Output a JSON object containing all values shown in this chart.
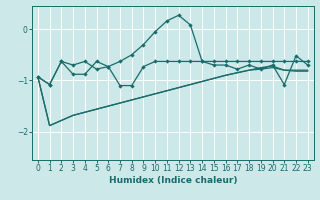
{
  "xlabel": "Humidex (Indice chaleur)",
  "bg_color": "#cce8e8",
  "line_color": "#1a6b6b",
  "grid_color": "#ffffff",
  "xlim": [
    -0.5,
    23.5
  ],
  "ylim": [
    -2.55,
    0.45
  ],
  "yticks": [
    0,
    -1,
    -2
  ],
  "xticks": [
    0,
    1,
    2,
    3,
    4,
    5,
    6,
    7,
    8,
    9,
    10,
    11,
    12,
    13,
    14,
    15,
    16,
    17,
    18,
    19,
    20,
    21,
    22,
    23
  ],
  "line1_x": [
    0,
    1,
    2,
    3,
    4,
    5,
    6,
    7,
    8,
    9,
    10,
    11,
    12,
    13,
    14,
    15,
    16,
    17,
    18,
    19,
    20,
    21,
    22,
    23
  ],
  "line1_y": [
    -0.93,
    -1.08,
    -0.63,
    -0.7,
    -0.63,
    -0.78,
    -0.73,
    -0.63,
    -0.5,
    -0.3,
    -0.05,
    0.16,
    0.27,
    0.08,
    -0.63,
    -0.7,
    -0.7,
    -0.78,
    -0.7,
    -0.78,
    -0.7,
    -1.08,
    -0.52,
    -0.7
  ],
  "line2_x": [
    0,
    1,
    2,
    3,
    4,
    5,
    6,
    7,
    8,
    9,
    10,
    11,
    12,
    13,
    14,
    15,
    16,
    17,
    18,
    19,
    20,
    21,
    22,
    23
  ],
  "line2_y": [
    -0.93,
    -1.08,
    -0.63,
    -0.88,
    -0.88,
    -0.63,
    -0.73,
    -1.1,
    -1.1,
    -0.73,
    -0.63,
    -0.63,
    -0.63,
    -0.63,
    -0.63,
    -0.63,
    -0.63,
    -0.63,
    -0.63,
    -0.63,
    -0.63,
    -0.63,
    -0.63,
    -0.63
  ],
  "line3_x": [
    0,
    1,
    2,
    3,
    4,
    5,
    6,
    7,
    8,
    9,
    10,
    11,
    12,
    13,
    14,
    15,
    16,
    17,
    18,
    19,
    20,
    21,
    22,
    23
  ],
  "line3_y": [
    -0.93,
    -1.88,
    -1.78,
    -1.68,
    -1.62,
    -1.56,
    -1.5,
    -1.44,
    -1.38,
    -1.32,
    -1.26,
    -1.2,
    -1.14,
    -1.08,
    -1.02,
    -0.96,
    -0.9,
    -0.85,
    -0.8,
    -0.78,
    -0.75,
    -0.8,
    -0.8,
    -0.8
  ],
  "line4_x": [
    0,
    1,
    2,
    3,
    4,
    5,
    6,
    7,
    8,
    9,
    10,
    11,
    12,
    13,
    14,
    15,
    16,
    17,
    18,
    19,
    20,
    21,
    22,
    23
  ],
  "line4_y": [
    -0.93,
    -1.88,
    -1.78,
    -1.68,
    -1.62,
    -1.56,
    -1.5,
    -1.44,
    -1.38,
    -1.32,
    -1.26,
    -1.2,
    -1.14,
    -1.08,
    -1.02,
    -0.96,
    -0.9,
    -0.85,
    -0.8,
    -0.75,
    -0.72,
    -0.8,
    -0.82,
    -0.82
  ]
}
